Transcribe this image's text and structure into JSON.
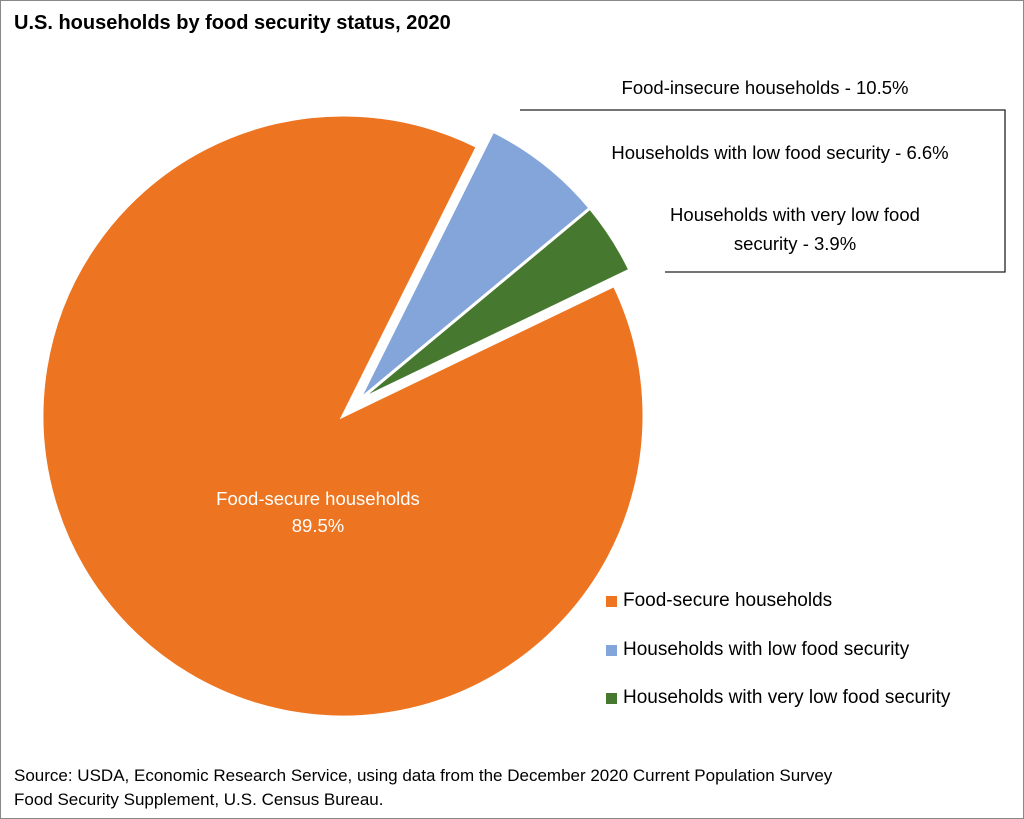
{
  "chart_data": {
    "type": "pie",
    "title": "U.S. households by food security status, 2020",
    "slices": [
      {
        "name": "Food-secure households",
        "value": 89.5,
        "color": "#ed7420",
        "exploded": false,
        "label": "Food-secure households",
        "label_value": "89.5%"
      },
      {
        "name": "Households with low food security",
        "value": 6.6,
        "color": "#84a5d9",
        "exploded": true,
        "label": "Households with low food security - 6.6%"
      },
      {
        "name": "Households with very low food security",
        "value": 3.9,
        "color": "#467830",
        "exploded": true,
        "label_line1": "Households with very low food",
        "label_line2": "security - 3.9%"
      }
    ],
    "group_annotation": "Food-insecure households - 10.5%",
    "legend": {
      "placement": "bottom-right",
      "entries": [
        "Food-secure households",
        "Households with low food security",
        "Households with very low food security"
      ]
    },
    "source_line1": "Source: USDA, Economic Research Service, using data from the December 2020 Current Population Survey",
    "source_line2": "Food Security Supplement, U.S. Census Bureau."
  }
}
